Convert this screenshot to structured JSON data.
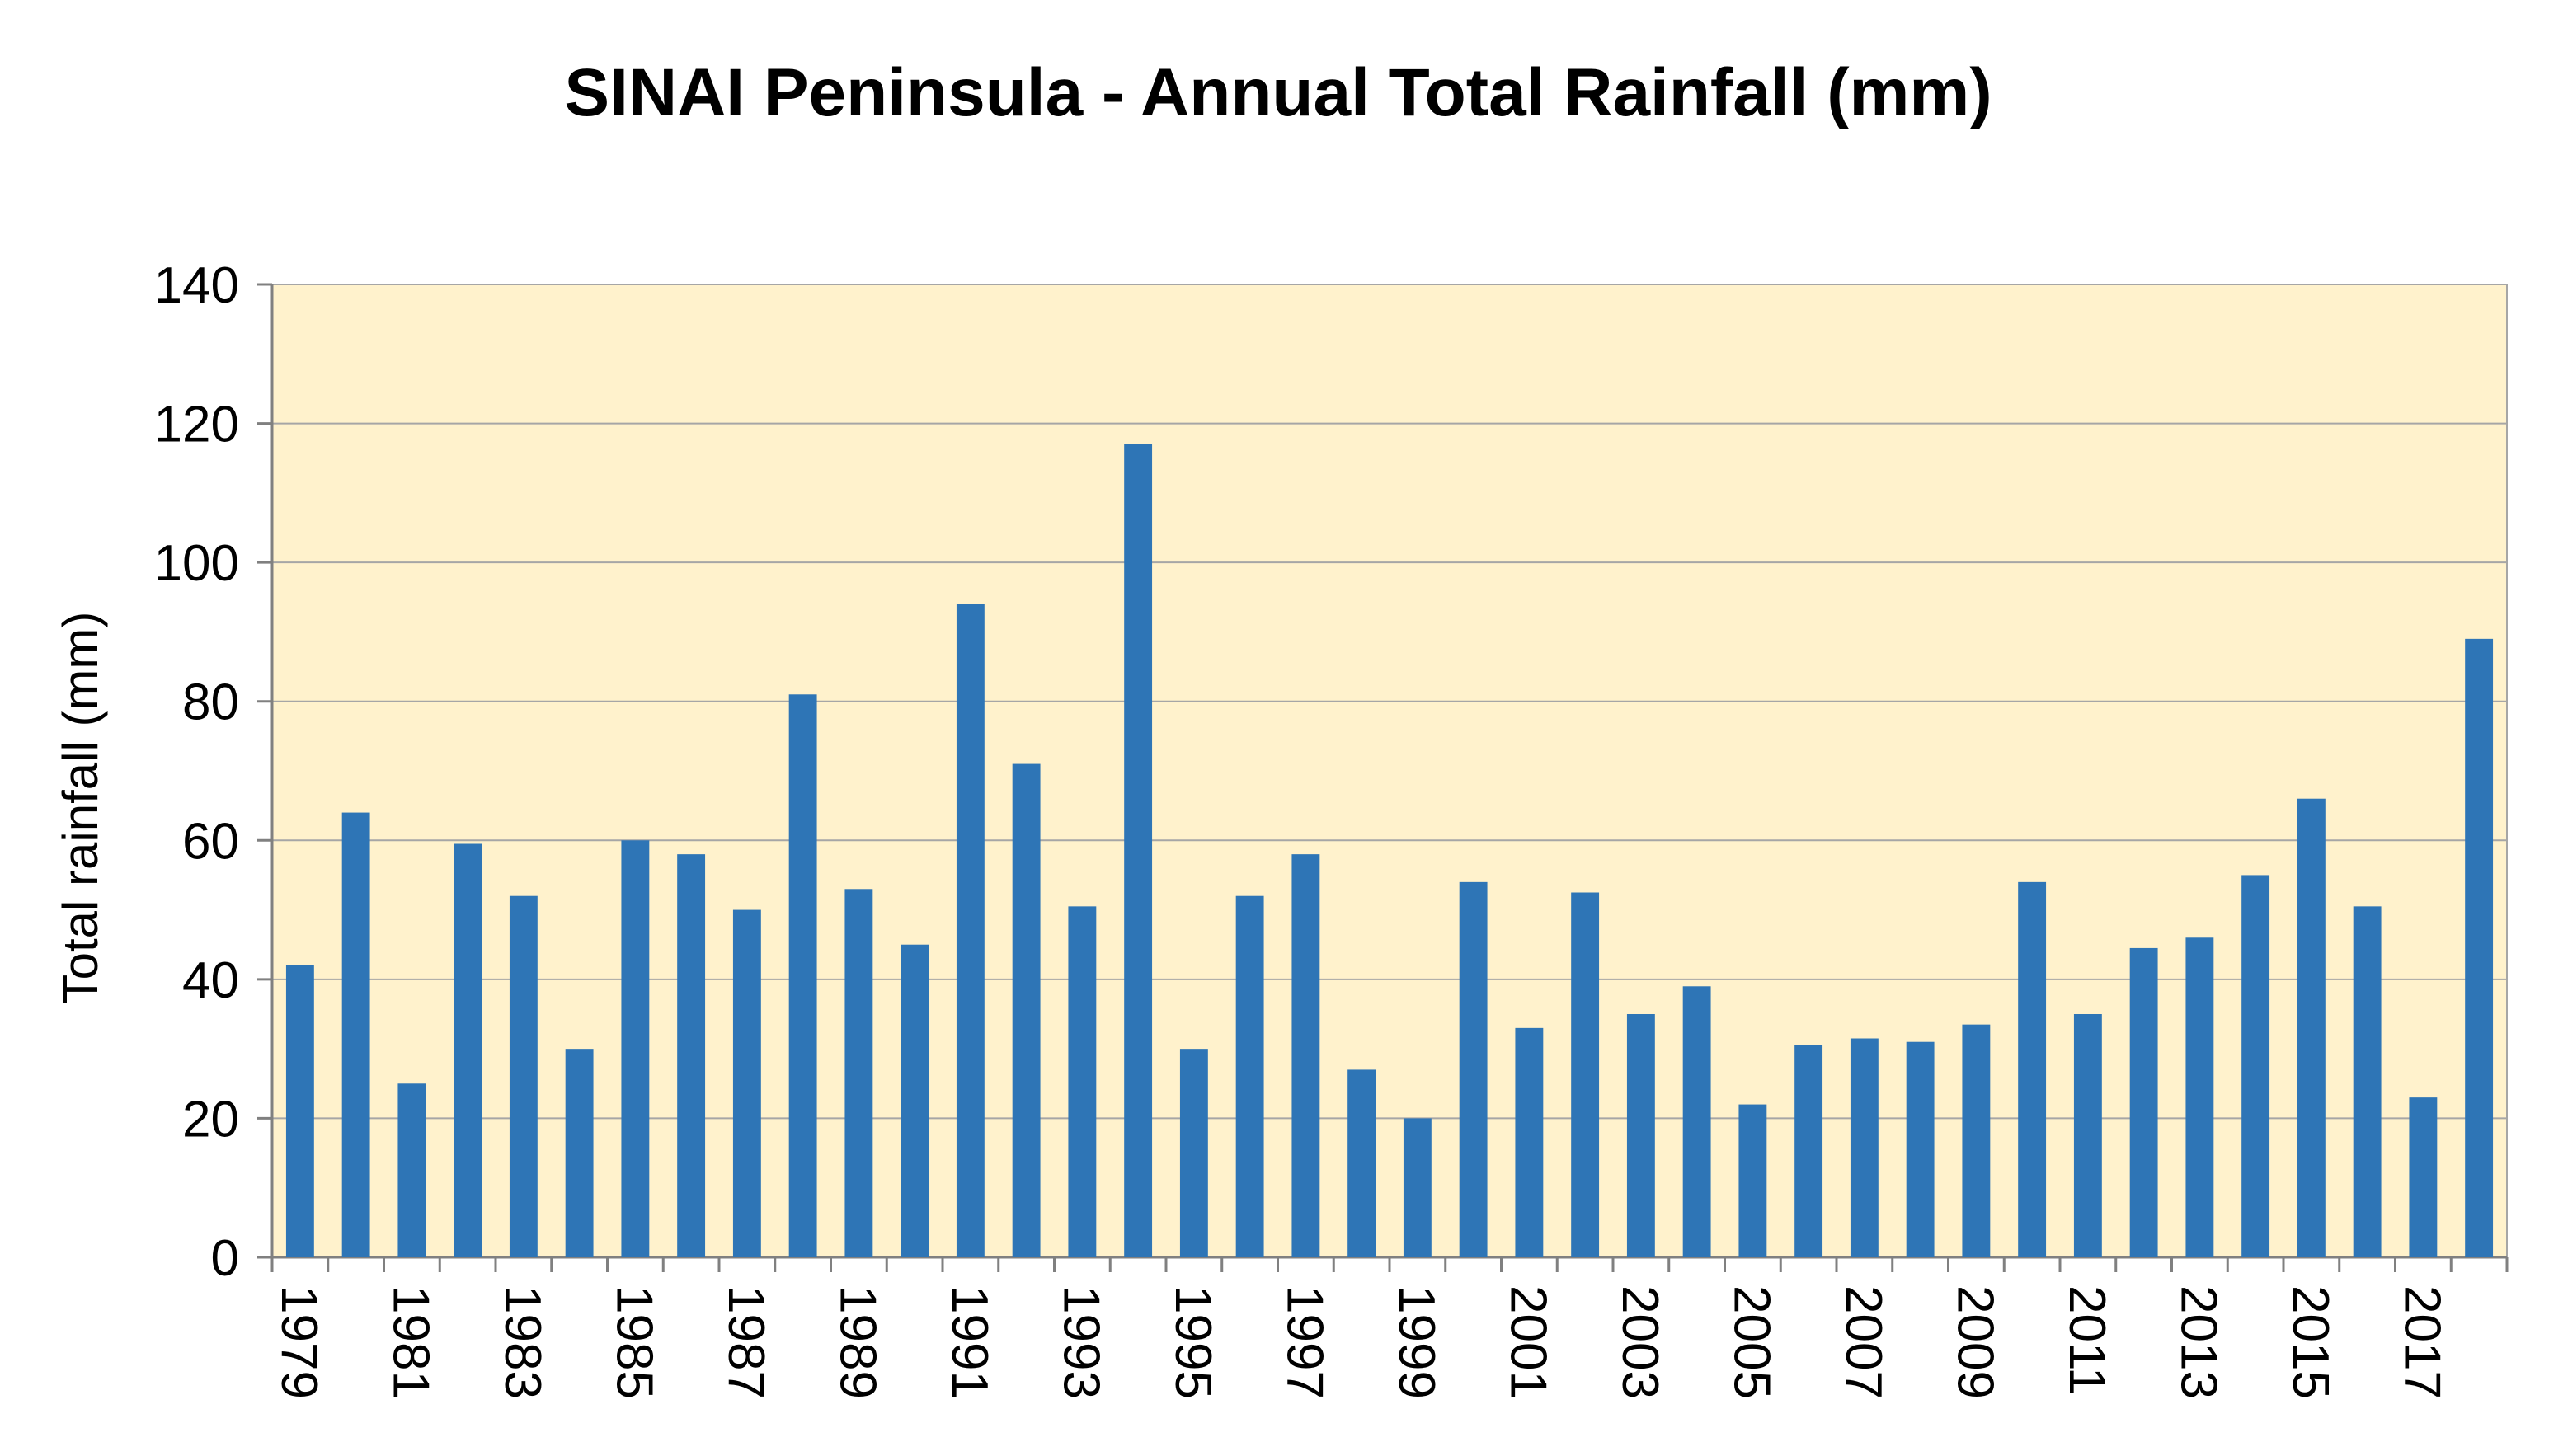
{
  "chart_data": {
    "type": "bar",
    "title": "SINAI Peninsula - Annual Total Rainfall (mm)",
    "xlabel": "",
    "ylabel": "Total rainfall (mm)",
    "ylim": [
      0,
      140
    ],
    "yticks": [
      0,
      20,
      40,
      60,
      80,
      100,
      120,
      140
    ],
    "grid": true,
    "legend": "none",
    "colors": {
      "bar": "#2E75B6",
      "plot_background": "#FFF2CC",
      "grid": "#A6A6A6",
      "axis": "#808080"
    },
    "categories": [
      "1979",
      "1980",
      "1981",
      "1982",
      "1983",
      "1984",
      "1985",
      "1986",
      "1987",
      "1988",
      "1989",
      "1990",
      "1991",
      "1992",
      "1993",
      "1994",
      "1995",
      "1996",
      "1997",
      "1998",
      "1999",
      "2000",
      "2001",
      "2002",
      "2003",
      "2004",
      "2005",
      "2006",
      "2007",
      "2008",
      "2009",
      "2010",
      "2011",
      "2012",
      "2013",
      "2014",
      "2015",
      "2016",
      "2017",
      "2018"
    ],
    "tick_labels": [
      "1979",
      "",
      "1981",
      "",
      "1983",
      "",
      "1985",
      "",
      "1987",
      "",
      "1989",
      "",
      "1991",
      "",
      "1993",
      "",
      "1995",
      "",
      "1997",
      "",
      "1999",
      "",
      "2001",
      "",
      "2003",
      "",
      "2005",
      "",
      "2007",
      "",
      "2009",
      "",
      "2011",
      "",
      "2013",
      "",
      "2015",
      "",
      "2017",
      ""
    ],
    "values": [
      42,
      64,
      25,
      59.5,
      52,
      30,
      60,
      58,
      50,
      81,
      53,
      45,
      94,
      71,
      50.5,
      117,
      30,
      52,
      58,
      27,
      20,
      54,
      33,
      52.5,
      35,
      39,
      22,
      30.5,
      31.5,
      31,
      33.5,
      54,
      35,
      44.5,
      46,
      55,
      66,
      50.5,
      23,
      89
    ]
  }
}
